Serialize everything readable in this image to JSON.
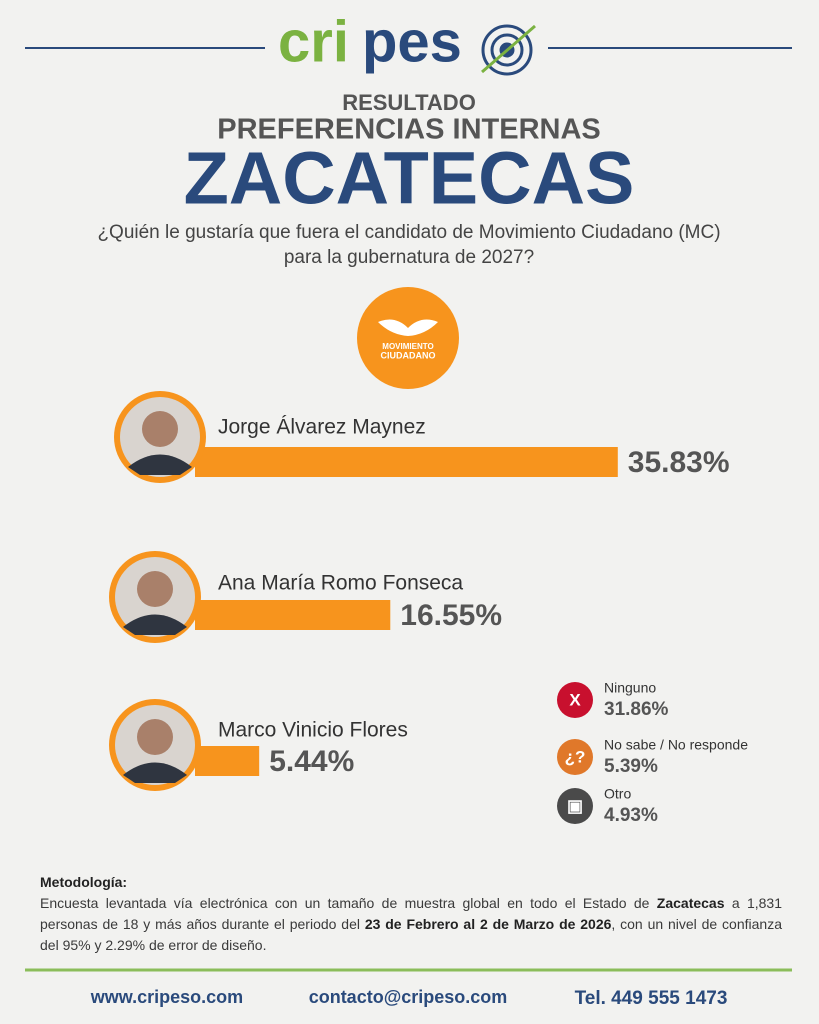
{
  "header": {
    "brand": [
      "cri",
      "pes"
    ],
    "kicker": "RESULTADO",
    "subtitle": "PREFERENCIAS INTERNAS",
    "title": "ZACATECAS",
    "question": [
      "¿Quién le gustaría que fuera el candidato de Movimiento Ciudadano (MC)",
      "para la gubernatura de 2027?"
    ],
    "party_logo": [
      "MOVIMIENTO",
      "CIUDADANO"
    ]
  },
  "chart_data": {
    "type": "bar",
    "orientation": "horizontal",
    "categories": [
      "Jorge Álvarez Maynez",
      "Ana María Romo Fonseca",
      "Marco Vinicio Flores"
    ],
    "values": [
      35.83,
      16.55,
      5.44
    ],
    "value_labels": [
      "35.83%",
      "16.55%",
      "5.44%"
    ],
    "color": "#f7941d"
  },
  "other_responses": {
    "names": [
      "Ninguno",
      "No sabe / No responde",
      "Otro"
    ],
    "values": [
      31.86,
      5.39,
      4.93
    ],
    "value_labels": [
      "31.86%",
      "5.39%",
      "4.93%"
    ],
    "colors": [
      "#c8102e",
      "#e0782a",
      "#4a4a4a"
    ],
    "icons": [
      "X",
      "¿?",
      "▣"
    ]
  },
  "methodology": {
    "title": "Metodología:",
    "segments": [
      {
        "text": "Encuesta levantada vía electrónica con un tamaño de muestra global en todo el Estado de ",
        "bold": false
      },
      {
        "text": "Zacatecas",
        "bold": true
      },
      {
        "text": " a 1,831 personas de 18 y más años durante el periodo del ",
        "bold": false
      },
      {
        "text": "23 de Febrero al 2 de Marzo de 2026",
        "bold": true
      },
      {
        "text": ", con un nivel de confianza del 95% y 2.29% de error de diseño.",
        "bold": false
      }
    ]
  },
  "footer": {
    "web": "www.cripeso.com",
    "email": "contacto@cripeso.com",
    "phone": "Tel. 449 555 1473"
  }
}
